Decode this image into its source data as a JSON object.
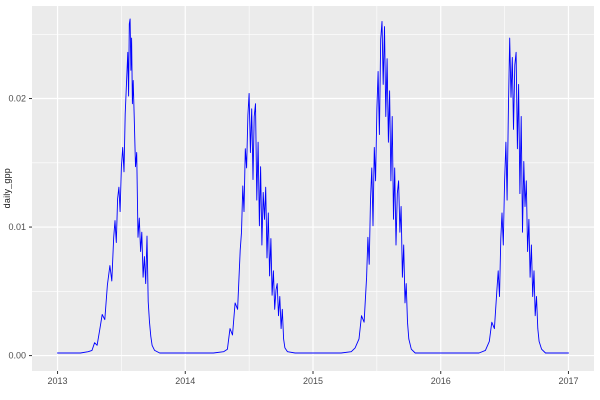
{
  "chart_data": {
    "type": "line",
    "title": "",
    "xlabel": "",
    "ylabel": "daily_gpp",
    "x_ticks": [
      2013,
      2014,
      2015,
      2016,
      2017
    ],
    "x_tick_labels": [
      "2013",
      "2014",
      "2015",
      "2016",
      "2017"
    ],
    "x_minor_ticks": [
      2013.5,
      2014.5,
      2015.5,
      2016.5
    ],
    "y_ticks": [
      0.0,
      0.01,
      0.02
    ],
    "y_tick_labels": [
      "0.00",
      "0.01",
      "0.02"
    ],
    "y_minor_ticks": [
      0.005,
      0.015,
      0.025
    ],
    "xlim": [
      2012.8,
      2017.2
    ],
    "ylim": [
      -0.0012,
      0.0272
    ],
    "grid": true,
    "legend": "none",
    "line_color": "#0000FF",
    "panel_bg": "#EBEBEB",
    "grid_color": "#FFFFFF",
    "tick_color": "#333333",
    "axis_text_color": "#4D4D4D",
    "series": [
      {
        "name": "daily_gpp",
        "points": [
          [
            2013.0,
            0.0002
          ],
          [
            2013.06,
            0.0002
          ],
          [
            2013.12,
            0.0002
          ],
          [
            2013.18,
            0.0002
          ],
          [
            2013.24,
            0.0003
          ],
          [
            2013.27,
            0.0004
          ],
          [
            2013.29,
            0.001
          ],
          [
            2013.31,
            0.0008
          ],
          [
            2013.33,
            0.002
          ],
          [
            2013.35,
            0.0032
          ],
          [
            2013.37,
            0.0028
          ],
          [
            2013.39,
            0.0055
          ],
          [
            2013.41,
            0.007
          ],
          [
            2013.425,
            0.0058
          ],
          [
            2013.44,
            0.0092
          ],
          [
            2013.45,
            0.0105
          ],
          [
            2013.46,
            0.0088
          ],
          [
            2013.47,
            0.0122
          ],
          [
            2013.48,
            0.0131
          ],
          [
            2013.49,
            0.0112
          ],
          [
            2013.5,
            0.0147
          ],
          [
            2013.51,
            0.0162
          ],
          [
            2013.52,
            0.0143
          ],
          [
            2013.53,
            0.0188
          ],
          [
            2013.54,
            0.0212
          ],
          [
            2013.55,
            0.0236
          ],
          [
            2013.556,
            0.0202
          ],
          [
            2013.562,
            0.0258
          ],
          [
            2013.568,
            0.0262
          ],
          [
            2013.574,
            0.0222
          ],
          [
            2013.58,
            0.0247
          ],
          [
            2013.586,
            0.0196
          ],
          [
            2013.592,
            0.0214
          ],
          [
            2013.6,
            0.0186
          ],
          [
            2013.61,
            0.0147
          ],
          [
            2013.62,
            0.0158
          ],
          [
            2013.63,
            0.0092
          ],
          [
            2013.64,
            0.0107
          ],
          [
            2013.65,
            0.0081
          ],
          [
            2013.66,
            0.0096
          ],
          [
            2013.67,
            0.0061
          ],
          [
            2013.68,
            0.0077
          ],
          [
            2013.69,
            0.0056
          ],
          [
            2013.7,
            0.0093
          ],
          [
            2013.71,
            0.0042
          ],
          [
            2013.72,
            0.0026
          ],
          [
            2013.73,
            0.0015
          ],
          [
            2013.74,
            0.0008
          ],
          [
            2013.76,
            0.0004
          ],
          [
            2013.8,
            0.0002
          ],
          [
            2013.86,
            0.0002
          ],
          [
            2013.92,
            0.0002
          ],
          [
            2013.98,
            0.0002
          ],
          [
            2014.06,
            0.0002
          ],
          [
            2014.14,
            0.0002
          ],
          [
            2014.22,
            0.0002
          ],
          [
            2014.3,
            0.0003
          ],
          [
            2014.33,
            0.0005
          ],
          [
            2014.35,
            0.0021
          ],
          [
            2014.37,
            0.0016
          ],
          [
            2014.39,
            0.0041
          ],
          [
            2014.41,
            0.0036
          ],
          [
            2014.43,
            0.0082
          ],
          [
            2014.44,
            0.0096
          ],
          [
            2014.45,
            0.0132
          ],
          [
            2014.46,
            0.0112
          ],
          [
            2014.47,
            0.0161
          ],
          [
            2014.48,
            0.0146
          ],
          [
            2014.49,
            0.0187
          ],
          [
            2014.5,
            0.0204
          ],
          [
            2014.51,
            0.0158
          ],
          [
            2014.52,
            0.0192
          ],
          [
            2014.53,
            0.0137
          ],
          [
            2014.54,
            0.0186
          ],
          [
            2014.55,
            0.0196
          ],
          [
            2014.56,
            0.0121
          ],
          [
            2014.57,
            0.0166
          ],
          [
            2014.58,
            0.0101
          ],
          [
            2014.59,
            0.0147
          ],
          [
            2014.6,
            0.0086
          ],
          [
            2014.61,
            0.0127
          ],
          [
            2014.62,
            0.0106
          ],
          [
            2014.63,
            0.0131
          ],
          [
            2014.64,
            0.0076
          ],
          [
            2014.65,
            0.0111
          ],
          [
            2014.66,
            0.0062
          ],
          [
            2014.67,
            0.0091
          ],
          [
            2014.68,
            0.0047
          ],
          [
            2014.69,
            0.0066
          ],
          [
            2014.7,
            0.0036
          ],
          [
            2014.71,
            0.0051
          ],
          [
            2014.72,
            0.0056
          ],
          [
            2014.73,
            0.0031
          ],
          [
            2014.74,
            0.0046
          ],
          [
            2014.75,
            0.0021
          ],
          [
            2014.76,
            0.0036
          ],
          [
            2014.77,
            0.0013
          ],
          [
            2014.78,
            0.0006
          ],
          [
            2014.8,
            0.0003
          ],
          [
            2014.86,
            0.0002
          ],
          [
            2014.92,
            0.0002
          ],
          [
            2014.98,
            0.0002
          ],
          [
            2015.06,
            0.0002
          ],
          [
            2015.14,
            0.0002
          ],
          [
            2015.22,
            0.0002
          ],
          [
            2015.3,
            0.0003
          ],
          [
            2015.33,
            0.0006
          ],
          [
            2015.36,
            0.0013
          ],
          [
            2015.38,
            0.0031
          ],
          [
            2015.4,
            0.0026
          ],
          [
            2015.42,
            0.0061
          ],
          [
            2015.43,
            0.0092
          ],
          [
            2015.44,
            0.0071
          ],
          [
            2015.45,
            0.0121
          ],
          [
            2015.46,
            0.0146
          ],
          [
            2015.47,
            0.0101
          ],
          [
            2015.48,
            0.0162
          ],
          [
            2015.49,
            0.0136
          ],
          [
            2015.5,
            0.0192
          ],
          [
            2015.51,
            0.0221
          ],
          [
            2015.52,
            0.0172
          ],
          [
            2015.53,
            0.0246
          ],
          [
            2015.54,
            0.026
          ],
          [
            2015.55,
            0.0211
          ],
          [
            2015.56,
            0.0256
          ],
          [
            2015.57,
            0.0186
          ],
          [
            2015.58,
            0.0231
          ],
          [
            2015.59,
            0.0166
          ],
          [
            2015.6,
            0.0206
          ],
          [
            2015.61,
            0.0136
          ],
          [
            2015.62,
            0.0186
          ],
          [
            2015.63,
            0.0106
          ],
          [
            2015.64,
            0.0146
          ],
          [
            2015.65,
            0.0086
          ],
          [
            2015.66,
            0.0126
          ],
          [
            2015.67,
            0.0136
          ],
          [
            2015.68,
            0.0096
          ],
          [
            2015.69,
            0.0116
          ],
          [
            2015.7,
            0.0061
          ],
          [
            2015.71,
            0.0086
          ],
          [
            2015.72,
            0.0041
          ],
          [
            2015.73,
            0.0056
          ],
          [
            2015.74,
            0.0026
          ],
          [
            2015.75,
            0.0013
          ],
          [
            2015.77,
            0.0005
          ],
          [
            2015.8,
            0.0002
          ],
          [
            2015.86,
            0.0002
          ],
          [
            2015.92,
            0.0002
          ],
          [
            2015.98,
            0.0002
          ],
          [
            2016.06,
            0.0002
          ],
          [
            2016.14,
            0.0002
          ],
          [
            2016.22,
            0.0002
          ],
          [
            2016.3,
            0.0002
          ],
          [
            2016.35,
            0.0004
          ],
          [
            2016.38,
            0.0011
          ],
          [
            2016.4,
            0.0026
          ],
          [
            2016.42,
            0.0021
          ],
          [
            2016.44,
            0.0051
          ],
          [
            2016.45,
            0.0066
          ],
          [
            2016.46,
            0.0046
          ],
          [
            2016.47,
            0.0091
          ],
          [
            2016.48,
            0.0111
          ],
          [
            2016.49,
            0.0086
          ],
          [
            2016.5,
            0.0136
          ],
          [
            2016.51,
            0.0166
          ],
          [
            2016.52,
            0.0121
          ],
          [
            2016.53,
            0.0191
          ],
          [
            2016.54,
            0.0247
          ],
          [
            2016.55,
            0.0201
          ],
          [
            2016.56,
            0.0232
          ],
          [
            2016.57,
            0.0176
          ],
          [
            2016.58,
            0.0226
          ],
          [
            2016.59,
            0.0236
          ],
          [
            2016.6,
            0.0161
          ],
          [
            2016.61,
            0.0211
          ],
          [
            2016.62,
            0.0126
          ],
          [
            2016.63,
            0.0186
          ],
          [
            2016.64,
            0.0096
          ],
          [
            2016.65,
            0.0151
          ],
          [
            2016.66,
            0.0116
          ],
          [
            2016.67,
            0.0136
          ],
          [
            2016.68,
            0.0081
          ],
          [
            2016.69,
            0.0106
          ],
          [
            2016.7,
            0.0061
          ],
          [
            2016.71,
            0.0086
          ],
          [
            2016.72,
            0.0046
          ],
          [
            2016.73,
            0.0066
          ],
          [
            2016.74,
            0.0031
          ],
          [
            2016.75,
            0.0046
          ],
          [
            2016.76,
            0.0021
          ],
          [
            2016.77,
            0.0011
          ],
          [
            2016.79,
            0.0005
          ],
          [
            2016.82,
            0.0002
          ],
          [
            2016.88,
            0.0002
          ],
          [
            2016.94,
            0.0002
          ],
          [
            2017.0,
            0.0002
          ]
        ]
      }
    ]
  }
}
